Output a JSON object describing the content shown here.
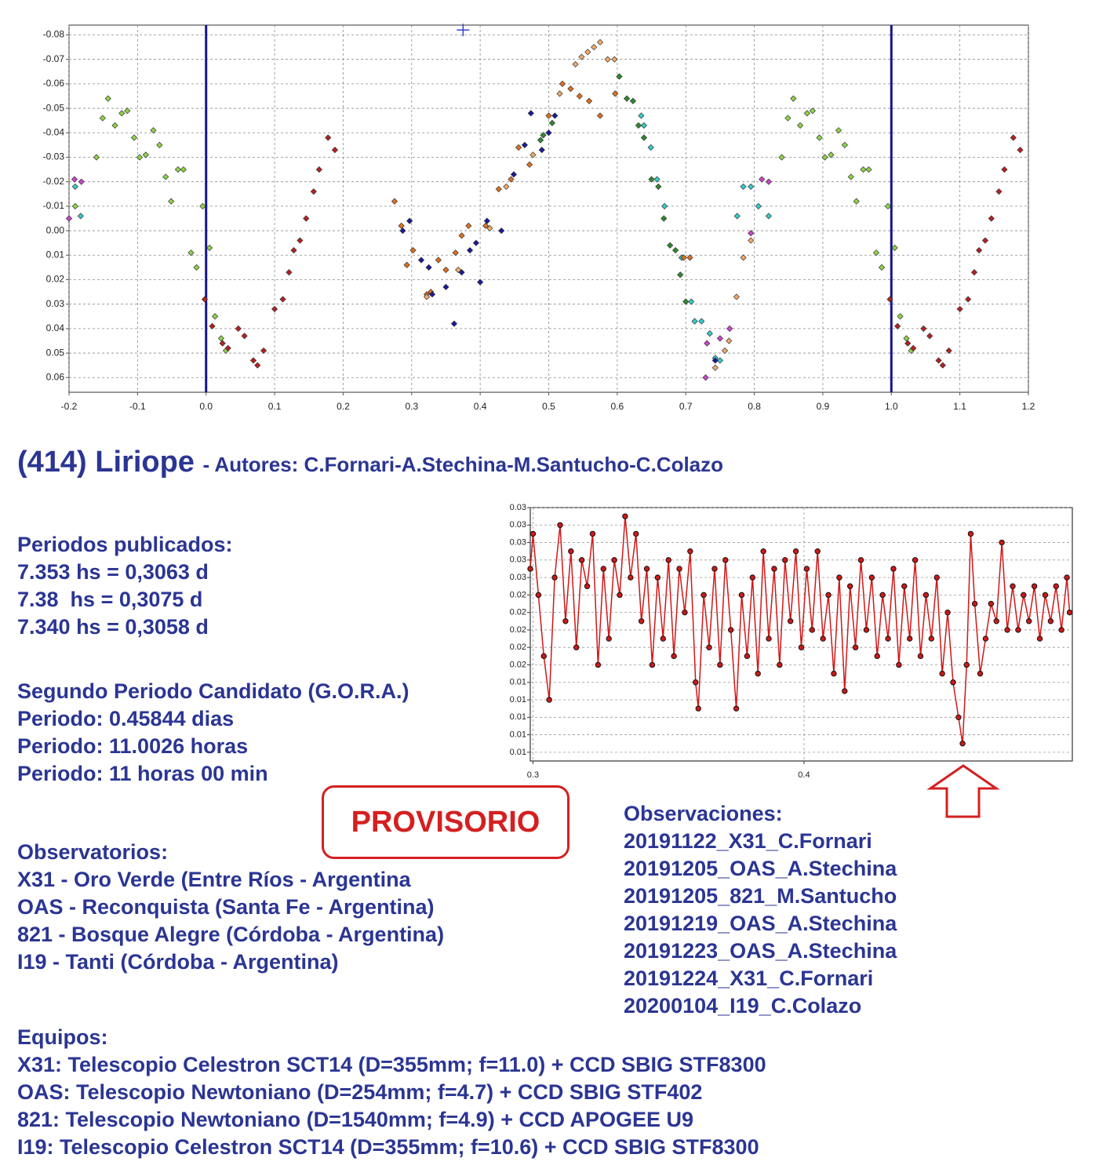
{
  "chart_data": [
    {
      "type": "scatter",
      "xlim": [
        -0.2,
        1.2
      ],
      "ylim": [
        0.066,
        -0.084
      ],
      "grid": true,
      "xticks": [
        -0.2,
        -0.1,
        {
          "value": 0,
          "label": "0.0"
        },
        0.1,
        0.2,
        0.3,
        0.4,
        0.5,
        0.6,
        0.7,
        0.8,
        0.9,
        {
          "value": 1,
          "label": "1.0"
        },
        1.1,
        1.2
      ],
      "yticks": [
        -0.08,
        -0.07,
        -0.06,
        -0.05,
        -0.04,
        -0.03,
        -0.02,
        -0.01,
        {
          "value": 0,
          "label": "0.00"
        },
        0.01,
        0.02,
        0.03,
        0.04,
        0.05,
        0.06
      ],
      "vlines": [
        0,
        1
      ],
      "vline_color": "#16168c",
      "cursor": [
        0.375,
        -0.082
      ],
      "cursor_color": "#3344cc",
      "series": [
        {
          "color": "#8ed448",
          "x": [
            -0.191,
            -0.16,
            -0.151,
            -0.143,
            -0.133,
            -0.123,
            -0.115,
            -0.105,
            -0.097,
            -0.088,
            -0.077,
            -0.068,
            -0.059,
            -0.051,
            -0.041,
            -0.033,
            -0.022,
            -0.014,
            -0.005,
            0.005,
            0.013,
            0.022,
            0.029,
            0.84,
            0.849,
            0.857,
            0.867,
            0.877,
            0.885,
            0.895,
            0.903,
            0.912,
            0.923,
            0.932,
            0.941,
            0.949,
            0.959,
            0.967,
            0.978,
            0.986,
            0.995,
            1.005,
            1.013,
            1.022,
            1.029
          ],
          "values": [
            -0.01,
            -0.03,
            -0.046,
            -0.054,
            -0.043,
            -0.048,
            -0.049,
            -0.038,
            -0.03,
            -0.031,
            -0.041,
            -0.035,
            -0.022,
            -0.012,
            -0.025,
            -0.025,
            0.009,
            0.015,
            -0.01,
            0.007,
            0.035,
            0.044,
            0.049,
            -0.03,
            -0.046,
            -0.054,
            -0.043,
            -0.048,
            -0.049,
            -0.038,
            -0.03,
            -0.031,
            -0.041,
            -0.035,
            -0.022,
            -0.012,
            -0.025,
            -0.025,
            0.009,
            0.015,
            -0.01,
            0.007,
            0.035,
            0.044,
            0.049
          ]
        },
        {
          "color": "#33cccc",
          "x": [
            -0.191,
            -0.183,
            0.635,
            0.639,
            0.649,
            0.658,
            0.669,
            0.694,
            0.708,
            0.713,
            0.723,
            0.735,
            0.743,
            0.75,
            0.775,
            0.784,
            0.795,
            0.806,
            0.821
          ],
          "values": [
            -0.018,
            -0.006,
            -0.047,
            -0.043,
            -0.034,
            -0.021,
            -0.01,
            0.011,
            0.029,
            0.037,
            0.037,
            0.042,
            0.052,
            0.053,
            -0.006,
            -0.018,
            -0.018,
            -0.01,
            -0.006
          ]
        },
        {
          "color": "#cc44cc",
          "x": [
            -0.2,
            -0.192,
            -0.182,
            0.729,
            0.731,
            0.75,
            0.764,
            0.795,
            0.811,
            0.821
          ],
          "values": [
            -0.005,
            -0.021,
            -0.02,
            0.06,
            0.046,
            0.044,
            0.04,
            0.001,
            -0.021,
            -0.02
          ]
        },
        {
          "color": "#b82020",
          "x": [
            -0.002,
            0.009,
            0.024,
            0.032,
            0.047,
            0.056,
            0.069,
            0.075,
            0.084,
            0.1,
            0.112,
            0.121,
            0.128,
            0.137,
            0.146,
            0.157,
            0.165,
            0.178,
            0.188,
            0.998,
            1.009,
            1.024,
            1.032,
            1.047,
            1.056,
            1.069,
            1.075,
            1.084,
            1.1,
            1.112,
            1.121,
            1.128,
            1.137,
            1.146,
            1.157,
            1.165,
            1.178,
            1.188
          ],
          "values": [
            0.028,
            0.039,
            0.046,
            0.048,
            0.04,
            0.043,
            0.053,
            0.055,
            0.049,
            0.032,
            0.028,
            0.017,
            0.008,
            0.004,
            -0.005,
            -0.016,
            -0.025,
            -0.038,
            -0.033,
            0.028,
            0.039,
            0.046,
            0.048,
            0.04,
            0.043,
            0.053,
            0.055,
            0.049,
            0.032,
            0.028,
            0.017,
            0.008,
            0.004,
            -0.005,
            -0.016,
            -0.025,
            -0.038,
            -0.033
          ]
        },
        {
          "color": "#e0701e",
          "x": [
            0.275,
            0.285,
            0.293,
            0.302,
            0.322,
            0.328,
            0.339,
            0.35,
            0.364,
            0.373,
            0.383,
            0.408,
            0.427,
            0.445,
            0.456,
            0.472,
            0.5,
            0.52,
            0.532,
            0.545,
            0.559,
            0.575,
            0.597,
            0.697,
            0.706
          ],
          "values": [
            -0.012,
            -0.002,
            0.014,
            0.008,
            0.026,
            0.025,
            0.012,
            0.016,
            0.009,
            0.002,
            -0.002,
            -0.002,
            -0.017,
            -0.021,
            -0.034,
            -0.027,
            -0.047,
            -0.06,
            -0.058,
            -0.055,
            -0.053,
            -0.047,
            -0.056,
            0.011,
            0.011
          ]
        },
        {
          "color": "#f2aa6a",
          "x": [
            0.516,
            0.539,
            0.548,
            0.557,
            0.566,
            0.575,
            0.586,
            0.596,
            0.477,
            0.438,
            0.414,
            0.368,
            0.322,
            0.763,
            0.757,
            0.743,
            0.774,
            0.784,
            0.795
          ],
          "values": [
            -0.056,
            -0.068,
            -0.071,
            -0.073,
            -0.075,
            -0.077,
            -0.07,
            -0.07,
            -0.031,
            -0.018,
            -0.001,
            0.016,
            0.027,
            0.045,
            0.049,
            0.056,
            0.027,
            0.011,
            0.004
          ]
        },
        {
          "color": "#1a1a9a",
          "x": [
            0.287,
            0.297,
            0.314,
            0.325,
            0.33,
            0.35,
            0.362,
            0.373,
            0.385,
            0.394,
            0.4,
            0.41,
            0.431,
            0.449,
            0.465,
            0.474,
            0.49,
            0.5,
            0.509,
            0.743
          ],
          "values": [
            0.0,
            -0.004,
            0.012,
            0.015,
            0.026,
            0.023,
            0.038,
            0.017,
            0.008,
            0.005,
            0.021,
            -0.004,
            0.0,
            -0.023,
            -0.035,
            -0.048,
            -0.033,
            -0.04,
            -0.047,
            0.053
          ]
        },
        {
          "color": "#2e8b2e",
          "x": [
            0.603,
            0.614,
            0.623,
            0.631,
            0.639,
            0.65,
            0.66,
            0.668,
            0.677,
            0.685,
            0.692,
            0.7,
            0.488,
            0.492,
            0.505
          ],
          "values": [
            -0.063,
            -0.054,
            -0.053,
            -0.043,
            -0.038,
            -0.021,
            -0.018,
            -0.005,
            0.006,
            0.008,
            0.018,
            0.029,
            -0.037,
            -0.039,
            -0.044
          ]
        }
      ]
    },
    {
      "type": "line",
      "xlim": [
        0.299,
        0.499
      ],
      "ylim": [
        0.005,
        0.034
      ],
      "grid": true,
      "xticks": [
        0.3,
        0.4
      ],
      "yticks": [
        {
          "value": 0.034,
          "label": "0.03"
        },
        {
          "value": 0.032,
          "label": "0.03"
        },
        {
          "value": 0.03,
          "label": "0.03"
        },
        {
          "value": 0.028,
          "label": "0.03"
        },
        {
          "value": 0.026,
          "label": "0.03"
        },
        {
          "value": 0.024,
          "label": "0.02"
        },
        {
          "value": 0.022,
          "label": "0.02"
        },
        {
          "value": 0.02,
          "label": "0.02"
        },
        {
          "value": 0.018,
          "label": "0.02"
        },
        {
          "value": 0.016,
          "label": "0.02"
        },
        {
          "value": 0.014,
          "label": "0.01"
        },
        {
          "value": 0.012,
          "label": "0.01"
        },
        {
          "value": 0.01,
          "label": "0.01"
        },
        {
          "value": 0.008,
          "label": "0.01"
        },
        {
          "value": 0.006,
          "label": "0.01"
        }
      ],
      "series": [
        {
          "color": "#d01818",
          "x": [
            0.299,
            0.3,
            0.302,
            0.304,
            0.306,
            0.308,
            0.31,
            0.312,
            0.314,
            0.316,
            0.318,
            0.32,
            0.322,
            0.324,
            0.326,
            0.328,
            0.33,
            0.332,
            0.334,
            0.336,
            0.338,
            0.34,
            0.342,
            0.344,
            0.346,
            0.348,
            0.35,
            0.352,
            0.354,
            0.356,
            0.358,
            0.36,
            0.361,
            0.363,
            0.365,
            0.367,
            0.369,
            0.371,
            0.373,
            0.375,
            0.377,
            0.379,
            0.381,
            0.383,
            0.385,
            0.387,
            0.389,
            0.391,
            0.393,
            0.395,
            0.397,
            0.399,
            0.401,
            0.403,
            0.405,
            0.407,
            0.409,
            0.411,
            0.413,
            0.415,
            0.417,
            0.419,
            0.421,
            0.423,
            0.425,
            0.427,
            0.429,
            0.431,
            0.433,
            0.435,
            0.437,
            0.439,
            0.441,
            0.443,
            0.445,
            0.447,
            0.449,
            0.451,
            0.453,
            0.455,
            0.457,
            0.4585,
            0.46,
            0.4615,
            0.463,
            0.465,
            0.467,
            0.469,
            0.471,
            0.473,
            0.475,
            0.477,
            0.479,
            0.481,
            0.483,
            0.485,
            0.487,
            0.489,
            0.491,
            0.493,
            0.495,
            0.497,
            0.498
          ],
          "values": [
            0.027,
            0.031,
            0.024,
            0.017,
            0.012,
            0.026,
            0.032,
            0.021,
            0.029,
            0.018,
            0.028,
            0.025,
            0.031,
            0.016,
            0.027,
            0.019,
            0.028,
            0.024,
            0.033,
            0.026,
            0.031,
            0.021,
            0.027,
            0.016,
            0.026,
            0.019,
            0.028,
            0.017,
            0.027,
            0.022,
            0.029,
            0.014,
            0.011,
            0.024,
            0.018,
            0.027,
            0.016,
            0.028,
            0.02,
            0.011,
            0.024,
            0.017,
            0.026,
            0.015,
            0.029,
            0.019,
            0.027,
            0.016,
            0.028,
            0.021,
            0.029,
            0.018,
            0.027,
            0.02,
            0.029,
            0.019,
            0.024,
            0.015,
            0.026,
            0.013,
            0.025,
            0.018,
            0.028,
            0.02,
            0.026,
            0.017,
            0.024,
            0.019,
            0.027,
            0.016,
            0.025,
            0.019,
            0.028,
            0.017,
            0.024,
            0.019,
            0.026,
            0.015,
            0.022,
            0.014,
            0.01,
            0.007,
            0.016,
            0.031,
            0.023,
            0.015,
            0.019,
            0.023,
            0.021,
            0.03,
            0.02,
            0.025,
            0.02,
            0.024,
            0.021,
            0.025,
            0.019,
            0.024,
            0.021,
            0.025,
            0.02,
            0.026,
            0.022
          ]
        }
      ]
    }
  ],
  "document": {
    "title": "(414) Liriope",
    "authors": "- Autores: C.Fornari-A.Stechina-M.Santucho-C.Colazo",
    "stamp": "PROVISORIO",
    "blocks": [
      {
        "heading": "Periodos publicados:",
        "lines": [
          "7.353 hs = 0,3063 d",
          "7.38  hs = 0,3075 d",
          "7.340 hs = 0,3058 d"
        ]
      },
      {
        "heading": "Segundo Periodo Candidato (G.O.R.A.)",
        "lines": [
          "Periodo: 0.45844 dias",
          "Periodo: 11.0026 horas",
          "Periodo: 11 horas 00 min"
        ]
      },
      {
        "heading": "Observatorios:",
        "lines": [
          "X31 - Oro Verde (Entre Ríos - Argentina",
          "OAS - Reconquista (Santa Fe - Argentina)",
          "821 - Bosque Alegre (Córdoba - Argentina)",
          "I19 - Tanti (Córdoba - Argentina)"
        ]
      },
      {
        "heading": "Observaciones:",
        "lines": [
          "20191122_X31_C.Fornari",
          "20191205_OAS_A.Stechina",
          "20191205_821_M.Santucho",
          "20191219_OAS_A.Stechina",
          "20191223_OAS_A.Stechina",
          "20191224_X31_C.Fornari",
          "20200104_I19_C.Colazo"
        ]
      },
      {
        "heading": "Equipos:",
        "lines": [
          "X31: Telescopio Celestron SCT14 (D=355mm; f=11.0) + CCD SBIG STF8300",
          "OAS: Telescopio Newtoniano (D=254mm; f=4.7) + CCD SBIG STF402",
          "821: Telescopio Newtoniano (D=1540mm; f=4.9) + CCD APOGEE U9",
          "I19: Telescopio Celestron SCT14 (D=355mm; f=10.6) + CCD SBIG STF8300"
        ]
      }
    ]
  }
}
